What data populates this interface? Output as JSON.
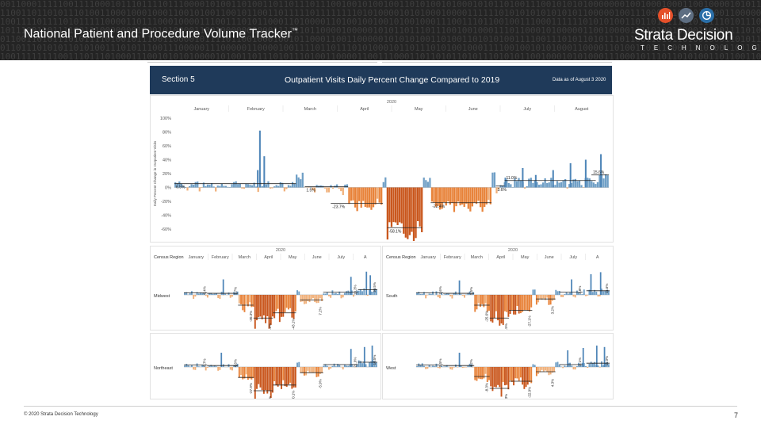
{
  "slide": {
    "title": "National Patient and Procedure Volume Tracker",
    "trademark": "™",
    "logo_text": "Strata Decision",
    "logo_sub": "TECHNOLOGY",
    "footer_copy": "© 2020 Strata Decision Technology",
    "page_number": "7",
    "logo_icons": [
      "bar-chart-icon",
      "trend-line-icon",
      "pie-clock-icon"
    ],
    "colors": {
      "banner": "#242424",
      "header_navy": "#1f3a5a",
      "positive_blue": "#6f9fc6",
      "negative_orange": "#e8833a",
      "accent_orange": "#e5502a"
    }
  },
  "screenshot": {
    "section": "Section 5",
    "title": "Outpatient Visits Daily Percent Change Compared to 2019",
    "as_of": "Data as of August 3 2020"
  },
  "chart_data": [
    {
      "type": "bar",
      "id": "national",
      "year_label": "2020",
      "ylabel": "Daily Percent Change in Outpatient Visits",
      "ylim": [
        -60,
        100
      ],
      "yticks": [
        "100%",
        "80%",
        "60%",
        "40%",
        "20%",
        "0%",
        "-20%",
        "-40%",
        "-60%"
      ],
      "months": [
        "January",
        "February",
        "March",
        "April",
        "May",
        "June",
        "July",
        "August"
      ],
      "periods": [
        {
          "from": 0.0,
          "to": 0.28,
          "mean": 5.5,
          "label": "6.5%",
          "label_side": "below"
        },
        {
          "from": 0.3,
          "to": 0.4,
          "mean": 1,
          "label": "1.5%",
          "label_side": "below"
        },
        {
          "from": 0.36,
          "to": 0.48,
          "mean": -23,
          "label": "-23.7%",
          "label_side": "below"
        },
        {
          "from": 0.49,
          "to": 0.57,
          "mean": -58,
          "label": "-58.1%",
          "label_side": "below"
        },
        {
          "from": 0.59,
          "to": 0.73,
          "mean": -22,
          "label": "-22.4%",
          "label_side": "below"
        },
        {
          "from": 0.74,
          "to": 0.76,
          "mean": 2,
          "label": "3.6%",
          "label_side": "below"
        },
        {
          "from": 0.76,
          "to": 0.97,
          "mean": 10,
          "label": "11.0%",
          "label_side": "above"
        },
        {
          "from": 0.96,
          "to": 1.0,
          "mean": 18,
          "label": "15.6%",
          "label_side": "above"
        }
      ],
      "spikes": [
        [
          0.195,
          82
        ],
        [
          0.19,
          25
        ],
        [
          0.205,
          45
        ],
        [
          0.945,
          40
        ],
        [
          0.98,
          48
        ],
        [
          0.91,
          35
        ],
        [
          0.87,
          25
        ],
        [
          0.83,
          18
        ],
        [
          0.8,
          28
        ],
        [
          0.76,
          14
        ]
      ]
    },
    {
      "type": "bar",
      "id": "midwest",
      "region": "Midwest",
      "header": "Census Region",
      "year_label": "2020",
      "ylim": [
        -60,
        60
      ],
      "months": [
        "January",
        "February",
        "March",
        "April",
        "May",
        "June",
        "July",
        "A"
      ],
      "periods": [
        {
          "from": 0.0,
          "to": 0.12,
          "mean": 4,
          "label": "6.4%"
        },
        {
          "from": 0.12,
          "to": 0.28,
          "mean": 3,
          "label": "3.7%"
        },
        {
          "from": 0.28,
          "to": 0.36,
          "mean": -20,
          "label": "-30.3%"
        },
        {
          "from": 0.36,
          "to": 0.46,
          "mean": -45,
          "label": "-54.2%"
        },
        {
          "from": 0.46,
          "to": 0.58,
          "mean": -35,
          "label": "-43.1%"
        },
        {
          "from": 0.6,
          "to": 0.72,
          "mean": -10,
          "label": "7.2%"
        },
        {
          "from": 0.72,
          "to": 0.9,
          "mean": 5,
          "label": "19.3%"
        },
        {
          "from": 0.9,
          "to": 1.0,
          "mean": 10,
          "label": "30.5%"
        }
      ],
      "spikes": [
        [
          0.2,
          30
        ],
        [
          0.86,
          35
        ],
        [
          0.94,
          45
        ],
        [
          0.96,
          38
        ]
      ]
    },
    {
      "type": "bar",
      "id": "south",
      "region": "South",
      "header": "Census Region",
      "year_label": "2020",
      "ylim": [
        -60,
        60
      ],
      "months": [
        "January",
        "February",
        "March",
        "April",
        "May",
        "June",
        "July",
        "A"
      ],
      "periods": [
        {
          "from": 0.0,
          "to": 0.14,
          "mean": 4,
          "label": "7.6%"
        },
        {
          "from": 0.14,
          "to": 0.3,
          "mean": 3,
          "label": "5.5%"
        },
        {
          "from": 0.3,
          "to": 0.38,
          "mean": -20,
          "label": "-25.6%"
        },
        {
          "from": 0.38,
          "to": 0.48,
          "mean": -45,
          "label": "-43.5%"
        },
        {
          "from": 0.48,
          "to": 0.6,
          "mean": -30,
          "label": "-27.1%"
        },
        {
          "from": 0.62,
          "to": 0.72,
          "mean": -8,
          "label": "3.2%"
        },
        {
          "from": 0.74,
          "to": 0.86,
          "mean": 5,
          "label": "2.8%"
        },
        {
          "from": 0.88,
          "to": 1.0,
          "mean": 8,
          "label": "11.6%"
        }
      ],
      "spikes": [
        [
          0.22,
          28
        ],
        [
          0.8,
          30
        ],
        [
          0.9,
          40
        ],
        [
          0.95,
          44
        ]
      ]
    },
    {
      "type": "bar",
      "id": "northeast",
      "region": "Northeast",
      "header": "",
      "year_label": "",
      "ylim": [
        -60,
        60
      ],
      "months": [],
      "periods": [
        {
          "from": 0.0,
          "to": 0.12,
          "mean": 4,
          "label": "3.7%"
        },
        {
          "from": 0.12,
          "to": 0.28,
          "mean": 3,
          "label": "4.6%"
        },
        {
          "from": 0.28,
          "to": 0.36,
          "mean": -22,
          "label": "-27.9%"
        },
        {
          "from": 0.36,
          "to": 0.46,
          "mean": -50,
          "label": "-62.0%"
        },
        {
          "from": 0.46,
          "to": 0.58,
          "mean": -38,
          "label": "-50.1%"
        },
        {
          "from": 0.6,
          "to": 0.72,
          "mean": -12,
          "label": "-5.9%"
        },
        {
          "from": 0.72,
          "to": 0.9,
          "mean": 5,
          "label": "21.9%"
        },
        {
          "from": 0.9,
          "to": 1.0,
          "mean": 10,
          "label": "10.5%"
        }
      ],
      "spikes": [
        [
          0.19,
          30
        ],
        [
          0.86,
          38
        ],
        [
          0.93,
          42
        ],
        [
          0.97,
          45
        ]
      ]
    },
    {
      "type": "bar",
      "id": "west",
      "region": "West",
      "header": "",
      "year_label": "",
      "ylim": [
        -60,
        60
      ],
      "months": [],
      "periods": [
        {
          "from": 0.0,
          "to": 0.14,
          "mean": 4,
          "label": "5.5%"
        },
        {
          "from": 0.14,
          "to": 0.3,
          "mean": 3,
          "label": "4.2%"
        },
        {
          "from": 0.3,
          "to": 0.38,
          "mean": -20,
          "label": "-8.3%"
        },
        {
          "from": 0.38,
          "to": 0.48,
          "mean": -45,
          "label": "-42.3%"
        },
        {
          "from": 0.48,
          "to": 0.6,
          "mean": -30,
          "label": "-22.9%"
        },
        {
          "from": 0.62,
          "to": 0.72,
          "mean": -10,
          "label": "4.3%"
        },
        {
          "from": 0.74,
          "to": 0.86,
          "mean": 5,
          "label": "-2.1%"
        },
        {
          "from": 0.88,
          "to": 1.0,
          "mean": 8,
          "label": "11.0%"
        }
      ],
      "spikes": [
        [
          0.22,
          30
        ],
        [
          0.78,
          35
        ],
        [
          0.86,
          40
        ],
        [
          0.93,
          45
        ],
        [
          0.97,
          42
        ]
      ]
    }
  ]
}
